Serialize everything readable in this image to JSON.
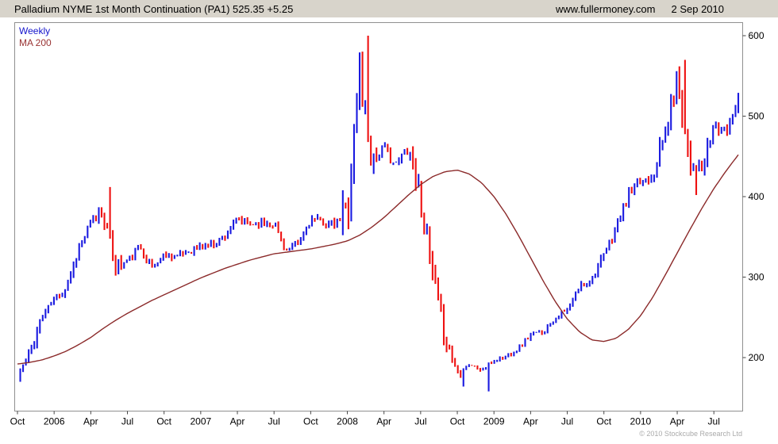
{
  "header": {
    "title": "Palladium NYME 1st Month Continuation (PA1) 525.35 +5.25",
    "site": "www.fullermoney.com",
    "date": "2 Sep 2010"
  },
  "legend": {
    "weekly": "Weekly",
    "ma200": "MA 200"
  },
  "footer": {
    "copyright": "© 2010 Stockcube Research Ltd"
  },
  "colors": {
    "up_bar": "#1a1ae0",
    "down_bar": "#ee1111",
    "ma_line": "#8b2a2a",
    "header_bg": "#d8d4cb",
    "plot_border": "#909090",
    "axis_text": "#000000",
    "copyright_text": "#aaaaaa"
  },
  "chart_data": {
    "type": "bar",
    "subtype": "weekly OHLC price bars with 200-period moving average overlay",
    "title": "Palladium NYME 1st Month Continuation (PA1)",
    "instrument": "Palladium NYME 1st Month Continuation (PA1)",
    "last_price": 525.35,
    "change": "+5.25",
    "timeframe": "Weekly",
    "xlabel": "",
    "ylabel": "",
    "ylim": [
      135,
      615
    ],
    "yticks": [
      200,
      300,
      400,
      500,
      600
    ],
    "grid": false,
    "legend_position": "top-left",
    "x_tick_labels": [
      "Oct",
      "2006",
      "Apr",
      "Jul",
      "Oct",
      "2007",
      "Apr",
      "Jul",
      "Oct",
      "2008",
      "Apr",
      "Jul",
      "Oct",
      "2009",
      "Apr",
      "Jul",
      "Oct",
      "2010",
      "Apr",
      "Jul"
    ],
    "x_tick_month_indices": [
      0,
      3,
      6,
      9,
      12,
      15,
      18,
      21,
      24,
      27,
      30,
      33,
      36,
      39,
      42,
      45,
      48,
      51,
      54,
      57
    ],
    "months": [
      "Oct 2005",
      "Nov 2005",
      "Dec 2005",
      "Jan 2006",
      "Feb 2006",
      "Mar 2006",
      "Apr 2006",
      "May 2006",
      "Jun 2006",
      "Jul 2006",
      "Aug 2006",
      "Sep 2006",
      "Oct 2006",
      "Nov 2006",
      "Dec 2006",
      "Jan 2007",
      "Feb 2007",
      "Mar 2007",
      "Apr 2007",
      "May 2007",
      "Jun 2007",
      "Jul 2007",
      "Aug 2007",
      "Sep 2007",
      "Oct 2007",
      "Nov 2007",
      "Dec 2007",
      "Jan 2008",
      "Feb 2008",
      "Mar 2008",
      "Apr 2008",
      "May 2008",
      "Jun 2008",
      "Jul 2008",
      "Aug 2008",
      "Sep 2008",
      "Oct 2008",
      "Nov 2008",
      "Dec 2008",
      "Jan 2009",
      "Feb 2009",
      "Mar 2009",
      "Apr 2009",
      "May 2009",
      "Jun 2009",
      "Jul 2009",
      "Aug 2009",
      "Sep 2009",
      "Oct 2009",
      "Nov 2009",
      "Dec 2009",
      "Jan 2010",
      "Feb 2010",
      "Mar 2010",
      "Apr 2010",
      "May 2010",
      "Jun 2010",
      "Jul 2010",
      "Aug 2010",
      "Sep 2010"
    ],
    "series": [
      {
        "name": "Palladium weekly price (monthly anchor closes, USD)",
        "values": [
          178,
          205,
          252,
          272,
          288,
          335,
          368,
          385,
          312,
          320,
          338,
          312,
          328,
          326,
          332,
          338,
          342,
          352,
          372,
          366,
          368,
          368,
          332,
          342,
          372,
          368,
          364,
          386,
          555,
          445,
          460,
          438,
          465,
          398,
          298,
          225,
          182,
          192,
          184,
          196,
          202,
          212,
          228,
          232,
          250,
          258,
          288,
          298,
          326,
          362,
          402,
          418,
          428,
          478,
          548,
          448,
          430,
          488,
          478,
          525
        ]
      },
      {
        "name": "MA 200 (monthly anchors, USD)",
        "values": [
          192,
          194,
          197,
          202,
          208,
          216,
          225,
          236,
          246,
          255,
          263,
          271,
          278,
          285,
          292,
          299,
          305,
          311,
          316,
          321,
          325,
          329,
          331,
          333,
          335,
          338,
          341,
          345,
          352,
          362,
          374,
          388,
          402,
          415,
          425,
          431,
          433,
          428,
          417,
          400,
          378,
          352,
          324,
          296,
          270,
          248,
          232,
          222,
          220,
          224,
          235,
          252,
          275,
          302,
          330,
          358,
          385,
          410,
          432,
          452
        ]
      }
    ],
    "pinned_highs": {
      "7": 412,
      "28": 600,
      "54": 570
    },
    "pinned_lows": {
      "36": 164,
      "38": 158,
      "55": 402
    },
    "key_points": {
      "start_price_oct_2005": 170,
      "high_2006": 412,
      "high_feb_mar_2008": 600,
      "low_late_2008": 158,
      "high_apr_2010": 570,
      "last": 525.35
    }
  }
}
